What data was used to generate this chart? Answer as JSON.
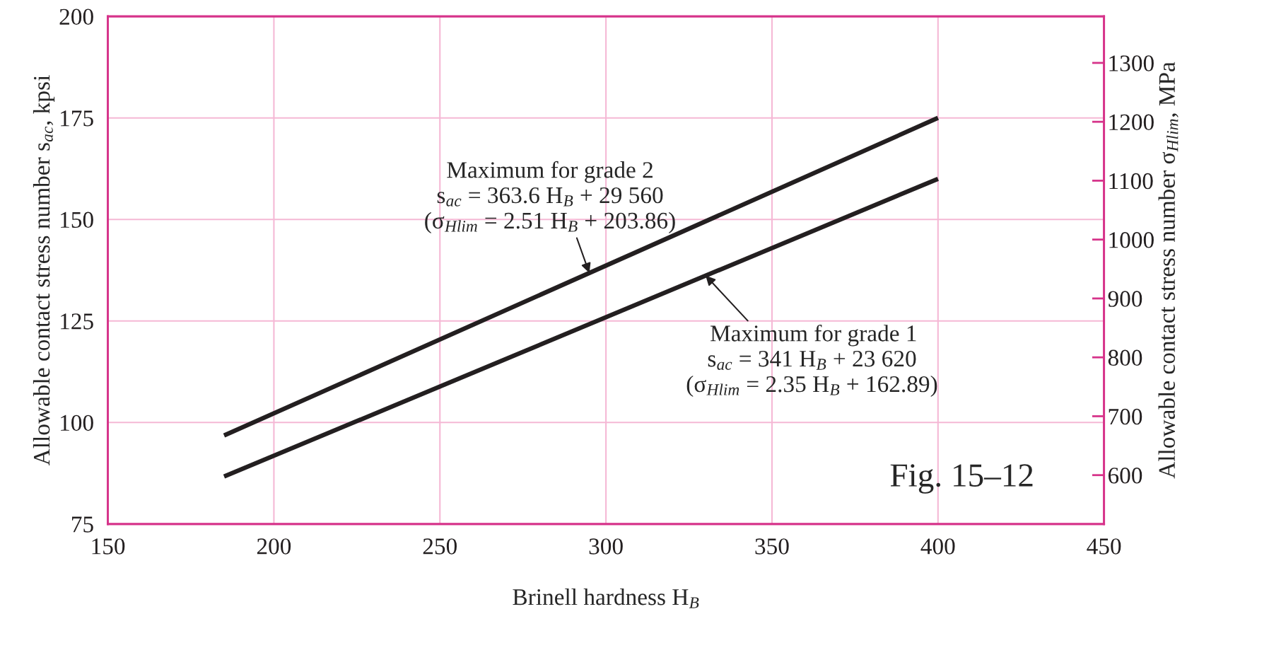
{
  "chart_data": {
    "type": "line",
    "xlabel": "Brinell hardness H$_{B}$",
    "ylabel": "Allowable contact stress number s$_{ac}$, kpsi",
    "y2label": "Allowable contact stress number σ$_{Hlim}$, MPa",
    "x": [
      185,
      400
    ],
    "series": [
      {
        "color": "#231f20",
        "values": [
          96.8,
          175.0
        ]
      },
      {
        "color": "#231f20",
        "values": [
          86.7,
          160.0
        ]
      }
    ],
    "xlim": [
      150,
      450
    ],
    "xticks": [
      150,
      200,
      250,
      300,
      350,
      400,
      450
    ],
    "ylim": [
      75,
      200
    ],
    "yticks": [
      75,
      100,
      125,
      150,
      175,
      200
    ],
    "y2lim": [
      517,
      1379
    ],
    "y2ticks": [
      600,
      700,
      800,
      900,
      1000,
      1100,
      1200,
      1300
    ],
    "grid": true,
    "marker": "none",
    "line_style": "solid",
    "annotations": [
      "Maximum for grade 2",
      "s$_{ac}$ = 363.6 H$_{B}$ + 29 560",
      {
        "text": "(σ$_{Hlim}$ = 2.51 H$_{B}$ + 203.86)",
        "x": 295,
        "y": 136.8
      },
      {
        "text": "Maximum for grade 1",
        "x": 330,
        "y": 136.2
      },
      "s$_{ac}$ = 341 H$_{B}$ + 23 620",
      "(σ$_{Hlim}$ = 2.35 H$_{B}$ + 162.89)",
      "Fig. 15–12"
    ]
  }
}
